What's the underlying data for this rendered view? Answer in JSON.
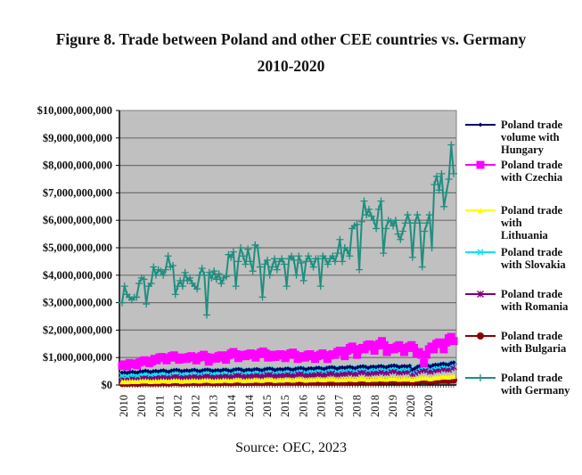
{
  "chart_data": {
    "type": "line",
    "title": "Figure 8. Trade between Poland and other CEE countries vs. Germany",
    "subtitle": "2010-2020",
    "source": "Source: OEC, 2023",
    "xlabel": "",
    "ylabel": "",
    "ylim": [
      0,
      10000000000
    ],
    "y_ticks": [
      "$0",
      "$1,000,000,000",
      "$2,000,000,000",
      "$3,000,000,000",
      "$4,000,000,000",
      "$5,000,000,000",
      "$6,000,000,000",
      "$7,000,000,000",
      "$8,000,000,000",
      "$9,000,000,000",
      "$10,000,000,000"
    ],
    "x_tick_labels": [
      "2010",
      "2010",
      "2011",
      "2012",
      "2012",
      "2013",
      "2014",
      "2014",
      "2015",
      "2015",
      "2016",
      "2016",
      "2017",
      "2018",
      "2018",
      "2019",
      "2020",
      "2020"
    ],
    "grid": true,
    "legend_position": "right",
    "plot_background": "#c0c0c0",
    "x_unit": "monthly observations, 2010-2020",
    "series": [
      {
        "name": "Poland trade volume with Hungary",
        "color": "#000066",
        "marker": "diamond",
        "values_billion": [
          0.45,
          0.46,
          0.44,
          0.47,
          0.48,
          0.46,
          0.45,
          0.5,
          0.49,
          0.52,
          0.5,
          0.47,
          0.5,
          0.51,
          0.49,
          0.52,
          0.53,
          0.5,
          0.48,
          0.52,
          0.54,
          0.55,
          0.53,
          0.5,
          0.52,
          0.53,
          0.51,
          0.54,
          0.55,
          0.52,
          0.5,
          0.53,
          0.55,
          0.56,
          0.54,
          0.51,
          0.53,
          0.54,
          0.52,
          0.55,
          0.56,
          0.53,
          0.51,
          0.55,
          0.57,
          0.58,
          0.56,
          0.52,
          0.55,
          0.56,
          0.54,
          0.57,
          0.58,
          0.55,
          0.53,
          0.57,
          0.59,
          0.6,
          0.58,
          0.54,
          0.57,
          0.58,
          0.56,
          0.59,
          0.6,
          0.57,
          0.55,
          0.59,
          0.61,
          0.62,
          0.6,
          0.56,
          0.6,
          0.61,
          0.59,
          0.62,
          0.63,
          0.6,
          0.58,
          0.62,
          0.64,
          0.65,
          0.63,
          0.59,
          0.63,
          0.64,
          0.62,
          0.65,
          0.66,
          0.63,
          0.61,
          0.65,
          0.67,
          0.68,
          0.66,
          0.62,
          0.66,
          0.67,
          0.65,
          0.68,
          0.69,
          0.66,
          0.64,
          0.68,
          0.7,
          0.71,
          0.69,
          0.65,
          0.68,
          0.69,
          0.67,
          0.7,
          0.55,
          0.6,
          0.66,
          0.7,
          0.72,
          0.73,
          0.71,
          0.67,
          0.72,
          0.74,
          0.73,
          0.76,
          0.78,
          0.75,
          0.74,
          0.8,
          0.82
        ]
      },
      {
        "name": "Poland trade with Czechia",
        "color": "#ff00ff",
        "marker": "square",
        "values_billion": [
          0.7,
          0.75,
          0.68,
          0.8,
          0.78,
          0.76,
          0.72,
          0.82,
          0.85,
          0.9,
          0.88,
          0.8,
          0.85,
          0.95,
          0.9,
          1.0,
          1.02,
          0.98,
          0.9,
          1.0,
          1.05,
          1.08,
          1.0,
          0.92,
          0.95,
          1.0,
          0.95,
          1.02,
          1.05,
          1.0,
          0.9,
          1.0,
          1.05,
          1.1,
          1.02,
          0.85,
          0.95,
          1.0,
          0.96,
          1.05,
          1.08,
          1.0,
          0.92,
          1.08,
          1.15,
          1.2,
          1.12,
          0.98,
          1.05,
          1.1,
          1.05,
          1.12,
          1.15,
          1.1,
          1.0,
          1.12,
          1.18,
          1.22,
          1.15,
          1.0,
          1.05,
          1.1,
          1.02,
          1.1,
          1.12,
          1.08,
          0.98,
          1.1,
          1.15,
          1.18,
          1.1,
          0.95,
          1.0,
          1.05,
          1.0,
          1.1,
          1.12,
          1.05,
          0.95,
          1.05,
          1.1,
          1.15,
          1.08,
          0.95,
          1.08,
          1.12,
          1.1,
          1.2,
          1.25,
          1.2,
          1.05,
          1.25,
          1.35,
          1.4,
          1.3,
          1.1,
          1.3,
          1.35,
          1.3,
          1.45,
          1.48,
          1.4,
          1.25,
          1.45,
          1.5,
          1.6,
          1.45,
          1.2,
          1.3,
          1.35,
          1.3,
          1.4,
          1.45,
          1.35,
          1.2,
          1.35,
          1.4,
          1.45,
          1.35,
          1.15,
          1.2,
          1.1,
          0.8,
          1.1,
          1.3,
          1.4,
          1.3,
          1.5,
          1.55,
          1.5,
          1.3,
          1.55,
          1.7,
          1.75,
          1.6
        ]
      },
      {
        "name": "Poland trade with Lithuania",
        "color": "#ffff00",
        "marker": "triangle",
        "values_billion": [
          0.12,
          0.13,
          0.12,
          0.14,
          0.14,
          0.13,
          0.13,
          0.15,
          0.15,
          0.16,
          0.15,
          0.13,
          0.14,
          0.15,
          0.14,
          0.16,
          0.16,
          0.15,
          0.14,
          0.16,
          0.17,
          0.17,
          0.16,
          0.14,
          0.15,
          0.16,
          0.15,
          0.17,
          0.17,
          0.16,
          0.15,
          0.17,
          0.18,
          0.18,
          0.17,
          0.15,
          0.16,
          0.17,
          0.16,
          0.18,
          0.18,
          0.17,
          0.16,
          0.18,
          0.19,
          0.19,
          0.18,
          0.16,
          0.17,
          0.18,
          0.17,
          0.19,
          0.19,
          0.18,
          0.17,
          0.19,
          0.2,
          0.2,
          0.19,
          0.17,
          0.18,
          0.19,
          0.18,
          0.2,
          0.2,
          0.19,
          0.18,
          0.2,
          0.21,
          0.21,
          0.2,
          0.18,
          0.19,
          0.2,
          0.19,
          0.21,
          0.21,
          0.2,
          0.19,
          0.21,
          0.22,
          0.22,
          0.21,
          0.19,
          0.2,
          0.21,
          0.2,
          0.22,
          0.22,
          0.21,
          0.2,
          0.22,
          0.23,
          0.23,
          0.22,
          0.2,
          0.21,
          0.22,
          0.21,
          0.23,
          0.23,
          0.22,
          0.21,
          0.23,
          0.24,
          0.24,
          0.23,
          0.21,
          0.22,
          0.23,
          0.22,
          0.24,
          0.2,
          0.22,
          0.23,
          0.25,
          0.26,
          0.26,
          0.25,
          0.23,
          0.25,
          0.27,
          0.27,
          0.29,
          0.3,
          0.3,
          0.29,
          0.31,
          0.32
        ]
      },
      {
        "name": "Poland trade with Slovakia",
        "color": "#00e5ee",
        "marker": "x",
        "values_billion": [
          0.35,
          0.38,
          0.34,
          0.4,
          0.41,
          0.39,
          0.36,
          0.42,
          0.44,
          0.46,
          0.44,
          0.4,
          0.42,
          0.45,
          0.43,
          0.47,
          0.48,
          0.45,
          0.42,
          0.47,
          0.5,
          0.51,
          0.48,
          0.43,
          0.45,
          0.48,
          0.45,
          0.5,
          0.51,
          0.48,
          0.44,
          0.49,
          0.52,
          0.53,
          0.5,
          0.45,
          0.47,
          0.5,
          0.47,
          0.52,
          0.53,
          0.5,
          0.46,
          0.52,
          0.55,
          0.56,
          0.53,
          0.47,
          0.5,
          0.52,
          0.49,
          0.54,
          0.55,
          0.52,
          0.48,
          0.54,
          0.57,
          0.58,
          0.55,
          0.49,
          0.52,
          0.54,
          0.51,
          0.56,
          0.57,
          0.54,
          0.5,
          0.56,
          0.59,
          0.6,
          0.57,
          0.51,
          0.54,
          0.56,
          0.53,
          0.58,
          0.59,
          0.56,
          0.52,
          0.58,
          0.61,
          0.62,
          0.59,
          0.53,
          0.57,
          0.59,
          0.56,
          0.61,
          0.62,
          0.59,
          0.55,
          0.61,
          0.64,
          0.65,
          0.62,
          0.56,
          0.6,
          0.62,
          0.59,
          0.64,
          0.65,
          0.62,
          0.58,
          0.64,
          0.67,
          0.68,
          0.65,
          0.59,
          0.62,
          0.64,
          0.61,
          0.66,
          0.5,
          0.56,
          0.62,
          0.67,
          0.7,
          0.71,
          0.68,
          0.62,
          0.67,
          0.7,
          0.68,
          0.73,
          0.75,
          0.72,
          0.7,
          0.77,
          0.8
        ]
      },
      {
        "name": "Poland trade with Romania",
        "color": "#800080",
        "marker": "asterisk",
        "values_billion": [
          0.2,
          0.22,
          0.2,
          0.23,
          0.24,
          0.22,
          0.21,
          0.24,
          0.25,
          0.26,
          0.25,
          0.22,
          0.24,
          0.26,
          0.25,
          0.27,
          0.28,
          0.26,
          0.24,
          0.27,
          0.29,
          0.3,
          0.28,
          0.25,
          0.26,
          0.28,
          0.26,
          0.29,
          0.3,
          0.28,
          0.26,
          0.29,
          0.31,
          0.32,
          0.3,
          0.27,
          0.28,
          0.3,
          0.28,
          0.31,
          0.32,
          0.3,
          0.28,
          0.32,
          0.34,
          0.35,
          0.33,
          0.29,
          0.31,
          0.33,
          0.31,
          0.34,
          0.35,
          0.33,
          0.31,
          0.35,
          0.37,
          0.38,
          0.36,
          0.32,
          0.34,
          0.36,
          0.34,
          0.37,
          0.38,
          0.36,
          0.34,
          0.38,
          0.4,
          0.41,
          0.39,
          0.35,
          0.37,
          0.39,
          0.37,
          0.4,
          0.41,
          0.39,
          0.37,
          0.41,
          0.43,
          0.44,
          0.42,
          0.38,
          0.41,
          0.43,
          0.41,
          0.45,
          0.46,
          0.44,
          0.41,
          0.46,
          0.48,
          0.5,
          0.47,
          0.42,
          0.45,
          0.47,
          0.45,
          0.49,
          0.5,
          0.48,
          0.45,
          0.5,
          0.52,
          0.54,
          0.51,
          0.46,
          0.49,
          0.51,
          0.48,
          0.52,
          0.4,
          0.45,
          0.5,
          0.54,
          0.56,
          0.57,
          0.54,
          0.49,
          0.54,
          0.57,
          0.55,
          0.6,
          0.62,
          0.59,
          0.57,
          0.63,
          0.66
        ]
      },
      {
        "name": "Poland trade with Bulgaria",
        "color": "#8b0000",
        "marker": "circle",
        "values_billion": [
          0.06,
          0.07,
          0.06,
          0.07,
          0.07,
          0.07,
          0.06,
          0.07,
          0.08,
          0.08,
          0.08,
          0.07,
          0.07,
          0.08,
          0.07,
          0.08,
          0.08,
          0.08,
          0.07,
          0.08,
          0.09,
          0.09,
          0.08,
          0.07,
          0.08,
          0.08,
          0.08,
          0.09,
          0.09,
          0.08,
          0.08,
          0.09,
          0.09,
          0.1,
          0.09,
          0.08,
          0.08,
          0.09,
          0.08,
          0.09,
          0.1,
          0.09,
          0.08,
          0.09,
          0.1,
          0.1,
          0.1,
          0.09,
          0.09,
          0.1,
          0.09,
          0.1,
          0.1,
          0.1,
          0.09,
          0.1,
          0.11,
          0.11,
          0.1,
          0.09,
          0.1,
          0.1,
          0.1,
          0.11,
          0.11,
          0.1,
          0.1,
          0.11,
          0.12,
          0.12,
          0.11,
          0.1,
          0.11,
          0.11,
          0.11,
          0.12,
          0.12,
          0.11,
          0.11,
          0.12,
          0.13,
          0.13,
          0.12,
          0.11,
          0.12,
          0.12,
          0.12,
          0.13,
          0.13,
          0.13,
          0.12,
          0.13,
          0.14,
          0.14,
          0.13,
          0.12,
          0.13,
          0.13,
          0.13,
          0.14,
          0.14,
          0.14,
          0.13,
          0.14,
          0.15,
          0.15,
          0.14,
          0.13,
          0.14,
          0.14,
          0.14,
          0.15,
          0.12,
          0.13,
          0.14,
          0.15,
          0.16,
          0.16,
          0.15,
          0.14,
          0.15,
          0.16,
          0.16,
          0.17,
          0.17,
          0.17,
          0.16,
          0.18,
          0.18
        ]
      },
      {
        "name": "Poland trade with Germany",
        "color": "#1f8f80",
        "marker": "plus",
        "values_billion": [
          3.0,
          3.6,
          3.3,
          3.2,
          3.1,
          3.2,
          3.2,
          3.7,
          3.9,
          3.85,
          2.95,
          3.6,
          3.7,
          4.3,
          4.0,
          4.2,
          4.15,
          4.0,
          4.2,
          4.7,
          4.3,
          4.35,
          3.3,
          3.6,
          3.8,
          3.6,
          4.1,
          3.8,
          3.9,
          3.7,
          3.6,
          3.5,
          4.0,
          4.25,
          4.0,
          2.55,
          4.1,
          3.9,
          4.15,
          3.85,
          4.05,
          3.7,
          3.9,
          3.95,
          4.75,
          4.65,
          4.85,
          3.6,
          4.5,
          5.0,
          4.7,
          4.4,
          4.95,
          4.5,
          4.15,
          5.1,
          5.0,
          4.3,
          3.2,
          4.4,
          4.55,
          4.0,
          4.3,
          4.6,
          4.2,
          4.5,
          4.6,
          4.4,
          3.6,
          4.6,
          4.7,
          4.55,
          4.0,
          4.7,
          4.45,
          3.8,
          4.5,
          4.7,
          4.5,
          4.3,
          4.6,
          4.6,
          3.6,
          4.7,
          4.6,
          4.4,
          4.6,
          4.7,
          4.5,
          4.8,
          5.3,
          4.5,
          5.0,
          4.9,
          4.7,
          5.7,
          5.8,
          5.85,
          4.2,
          5.95,
          6.7,
          6.2,
          6.4,
          6.15,
          6.0,
          5.7,
          6.4,
          6.7,
          4.8,
          5.7,
          6.0,
          5.95,
          5.8,
          6.0,
          5.5,
          5.3,
          5.6,
          5.9,
          6.2,
          5.9,
          4.65,
          5.9,
          6.2,
          5.9,
          4.3,
          5.6,
          5.9,
          6.2,
          5.0,
          7.3,
          7.6,
          7.1,
          7.7,
          6.5,
          7.0,
          7.5,
          8.75,
          7.7
        ]
      }
    ]
  },
  "figure": {
    "title_line1": "Figure 8. Trade between Poland and other CEE countries vs. Germany",
    "title_line2": "2010-2020",
    "source": "Source: OEC, 2023"
  },
  "legend": [
    {
      "lines": [
        "Poland trade",
        "volume with",
        "Hungary"
      ]
    },
    {
      "lines": [
        "Poland trade",
        "with Czechia"
      ]
    },
    {
      "lines": [
        "Poland trade",
        "with",
        "Lithuania"
      ]
    },
    {
      "lines": [
        "Poland trade",
        "with Slovakia"
      ]
    },
    {
      "lines": [
        "Poland trade",
        "with Romania"
      ]
    },
    {
      "lines": [
        "Poland trade",
        "with Bulgaria"
      ]
    },
    {
      "lines": [
        "Poland trade",
        "with Germany"
      ]
    }
  ]
}
